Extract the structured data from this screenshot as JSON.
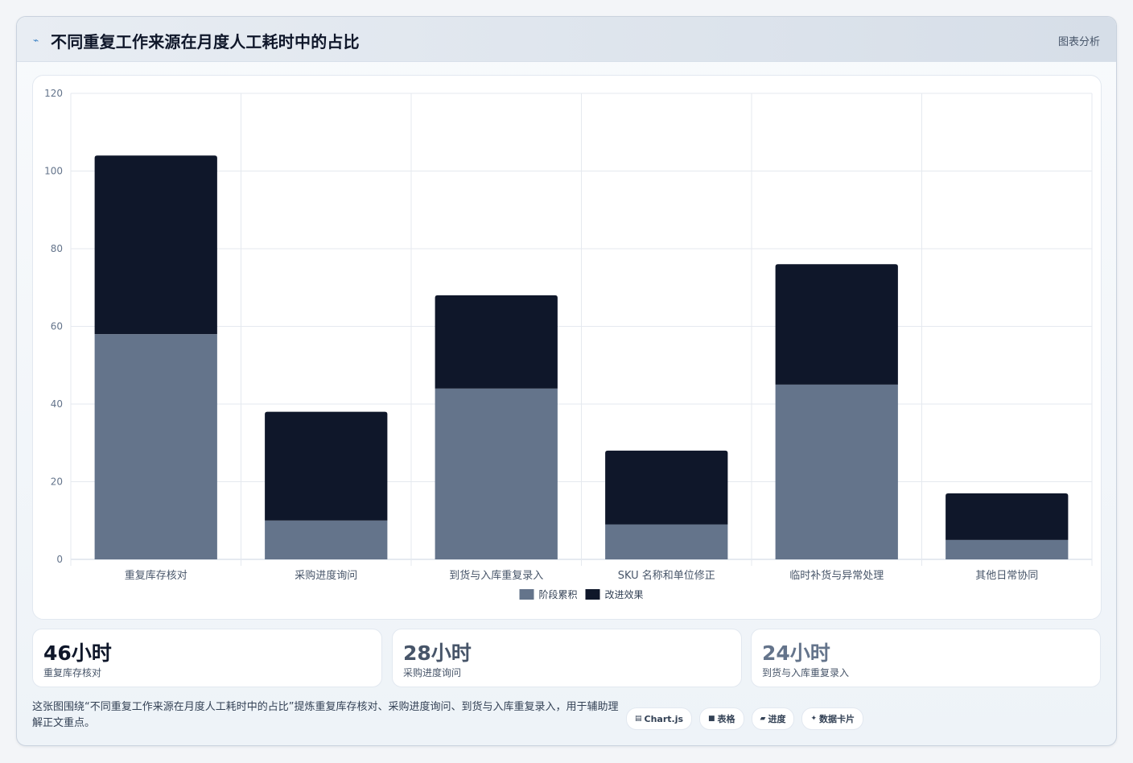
{
  "header": {
    "icon": "chart-icon",
    "title": "不同重复工作来源在月度人工耗时中的占比",
    "badge": "图表分析"
  },
  "chart_data": {
    "type": "bar",
    "stacked": true,
    "categories": [
      "重复库存核对",
      "采购进度询问",
      "到货与入库重复录入",
      "SKU 名称和单位修正",
      "临时补货与异常处理",
      "其他日常协同"
    ],
    "series": [
      {
        "name": "阶段累积",
        "color": "#64748b",
        "values": [
          58,
          10,
          44,
          9,
          45,
          5
        ]
      },
      {
        "name": "改进效果",
        "color": "#0f172a",
        "values": [
          46,
          28,
          24,
          19,
          31,
          12
        ]
      }
    ],
    "ylim": [
      0,
      120
    ],
    "yticks": [
      0,
      20,
      40,
      60,
      80,
      100,
      120
    ],
    "grid": true,
    "legend_position": "bottom"
  },
  "stats": [
    {
      "value": "46小时",
      "label": "重复库存核对",
      "color": "#0f172a"
    },
    {
      "value": "28小时",
      "label": "采购进度询问",
      "color": "#475569"
    },
    {
      "value": "24小时",
      "label": "到货与入库重复录入",
      "color": "#64748b"
    }
  ],
  "footer": {
    "text": "这张图围绕“不同重复工作来源在月度人工耗时中的占比”提炼重复库存核对、采购进度询问、到货与入库重复录入，用于辅助理解正文重点。"
  },
  "tags": [
    {
      "icon": "chart-icon",
      "glyph": "▤",
      "label": "Chart.js"
    },
    {
      "icon": "table-icon",
      "glyph": "■",
      "label": "表格"
    },
    {
      "icon": "progress-icon",
      "glyph": "▰",
      "label": "进度"
    },
    {
      "icon": "sparkle-icon",
      "glyph": "✦",
      "label": "数据卡片"
    }
  ]
}
